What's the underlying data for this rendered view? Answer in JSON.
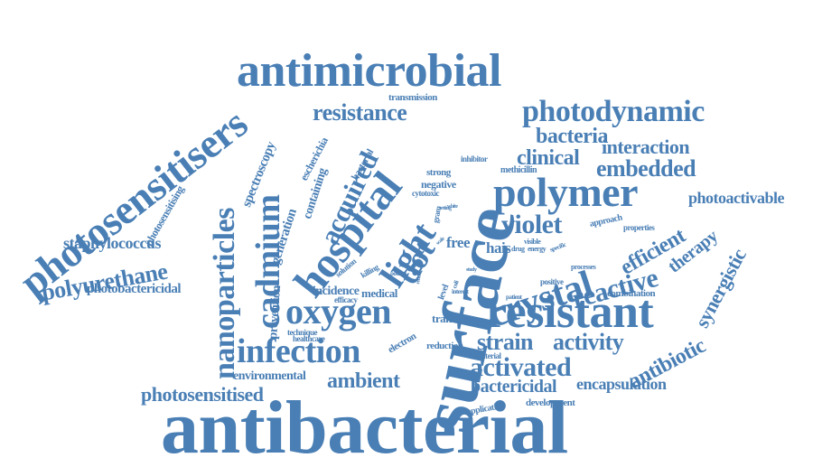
{
  "theme": {
    "word_color": "#4a7fb5",
    "background": "#ffffff"
  },
  "words": [
    "antibacterial",
    "surface",
    "antimicrobial",
    "photosensitisers",
    "photosensitisers_split",
    "resistant",
    "polymer",
    "hospital",
    "photodynamic",
    "resistance",
    "cadmium",
    "crystal",
    "oxygen",
    "infection",
    "nanoparticles",
    "light",
    "dot",
    "violet",
    "reactive",
    "activated",
    "acquired",
    "polyurethane",
    "bacteria",
    "clinical",
    "interaction",
    "embedded",
    "photoactivable",
    "strain",
    "activity",
    "antibiotic",
    "synergistic",
    "therapy",
    "efficient",
    "ambient",
    "photosensitised",
    "encapsulation",
    "bactericidal",
    "staphylococcus",
    "photobactericidal",
    "spectroscopy",
    "photosensitising",
    "escherichia",
    "containing",
    "generation",
    "prevention",
    "bacterial",
    "free",
    "hais",
    "incidence",
    "medical",
    "transfer",
    "electron",
    "reduction",
    "environmental",
    "transmission",
    "negative",
    "strong",
    "methicillin",
    "inhibitor",
    "approach",
    "properties",
    "combination",
    "positive",
    "development",
    "application",
    "material",
    "cytotoxic",
    "killing",
    "efficacy",
    "solution",
    "technique",
    "healthcare",
    "gram",
    "visible",
    "drug",
    "energy",
    "specific",
    "potent",
    "level",
    "processes",
    "coli",
    "thesis",
    "patient",
    "interest",
    "grade",
    "study",
    "setting",
    "white",
    "reduce",
    "scale"
  ]
}
